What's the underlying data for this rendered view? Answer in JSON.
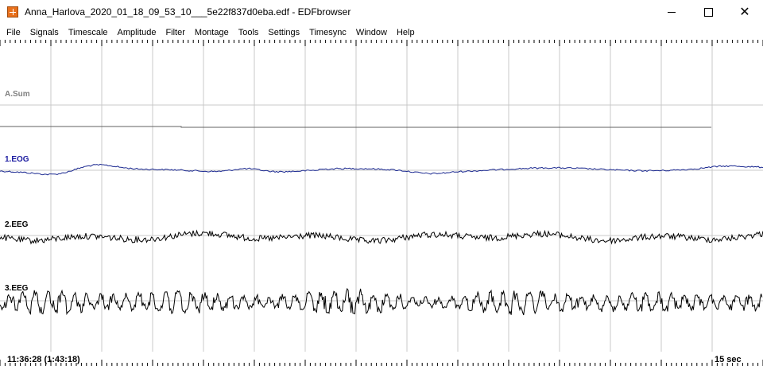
{
  "window": {
    "title": "Anna_Harlova_2020_01_18_09_53_10___5e22f837d0eba.edf - EDFbrowser",
    "close_glyph": "✕"
  },
  "menu": {
    "items": [
      "File",
      "Signals",
      "Timescale",
      "Amplitude",
      "Filter",
      "Montage",
      "Tools",
      "Settings",
      "Timesync",
      "Window",
      "Help"
    ]
  },
  "signals": [
    {
      "label": "A.Sum",
      "color": "#808080",
      "trace_color": "#606060",
      "kind": "annotation-sum"
    },
    {
      "label": "1.EOG",
      "color": "#1a1aa0",
      "trace_color": "#1a2890",
      "kind": "eog"
    },
    {
      "label": "2.EEG",
      "color": "#000000",
      "trace_color": "#000000",
      "kind": "eeg-low"
    },
    {
      "label": "3.EEG",
      "color": "#000000",
      "trace_color": "#000000",
      "kind": "eeg-high"
    }
  ],
  "footer": {
    "time": "11:36:28 (1:43:18)",
    "timescale": "15 sec"
  },
  "colors": {
    "grid": "#c8c8c8",
    "ruler": "#000000",
    "background": "#ffffff"
  }
}
